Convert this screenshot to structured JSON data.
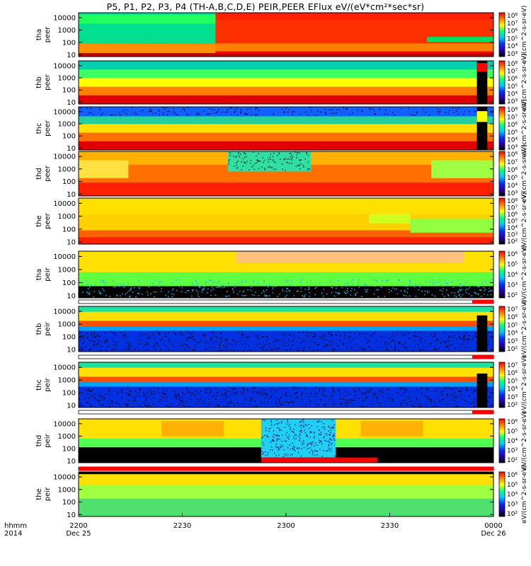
{
  "chart_data": {
    "type": "heatmap",
    "title": "P5, P1, P2, P3, P4 (TH-A,B,C,D,E) PEIR,PEER EFlux eV/(eV*cm²*sec*sr)",
    "x_axis": {
      "row_label": "hhmm",
      "year_label": "2014",
      "ticks": [
        {
          "label": "2200",
          "date": "Dec 25",
          "minutes": 0
        },
        {
          "label": "2230",
          "date": "",
          "minutes": 30
        },
        {
          "label": "2300",
          "date": "",
          "minutes": 60
        },
        {
          "label": "2330",
          "date": "",
          "minutes": 90
        },
        {
          "label": "0000",
          "date": "Dec 26",
          "minutes": 120
        }
      ],
      "range_minutes": [
        0,
        120
      ]
    },
    "y_scale": "log",
    "y_ticks": [
      "10000",
      "1000",
      "100",
      "10"
    ],
    "y_tick_values": [
      10000,
      1000,
      100,
      10
    ],
    "ylim": [
      7,
      25000
    ],
    "colorbar_units": "eV/(cm^2-s-sr-eV)",
    "panels": [
      {
        "line1": "tha",
        "line2": "peer",
        "cb_ticks": [
          "10⁸",
          "10⁷",
          "10⁶",
          "10⁵",
          "10⁴",
          "10³"
        ],
        "pattern": "tha-peer"
      },
      {
        "line1": "thb",
        "line2": "peer",
        "cb_ticks": [
          "10⁸",
          "10⁷",
          "10⁶",
          "10⁵",
          "10⁴",
          "10³"
        ],
        "pattern": "thb-peer"
      },
      {
        "line1": "thc",
        "line2": "peer",
        "cb_ticks": [
          "10⁸",
          "10⁷",
          "10⁶",
          "10⁵",
          "10⁴",
          "10³"
        ],
        "pattern": "thc-peer"
      },
      {
        "line1": "thd",
        "line2": "peer",
        "cb_ticks": [
          "10⁸",
          "10⁷",
          "10⁶",
          "10⁵",
          "10⁴",
          "10³"
        ],
        "pattern": "thd-peer"
      },
      {
        "line1": "the",
        "line2": "peer",
        "cb_ticks": [
          "10⁸",
          "10⁷",
          "10⁶",
          "10⁵",
          "10⁴",
          "10³",
          "10²"
        ],
        "pattern": "the-peer"
      },
      {
        "line1": "tha",
        "line2": "peir",
        "cb_ticks": [
          "10⁶",
          "10⁵",
          "10⁴",
          "10³",
          "10²"
        ],
        "pattern": "tha-peir"
      },
      {
        "line1": "thb",
        "line2": "peir",
        "cb_ticks": [
          "10⁷",
          "10⁶",
          "10⁵",
          "10⁴",
          "10³",
          "10²"
        ],
        "pattern": "thb-peir"
      },
      {
        "line1": "thc",
        "line2": "peir",
        "cb_ticks": [
          "10⁷",
          "10⁶",
          "10⁵",
          "10⁴",
          "10³",
          "10²"
        ],
        "pattern": "thc-peir"
      },
      {
        "line1": "thd",
        "line2": "peir",
        "cb_ticks": [
          "10⁶",
          "10⁵",
          "10⁴",
          "10³",
          "10²"
        ],
        "pattern": "thd-peir"
      },
      {
        "line1": "the",
        "line2": "peir",
        "cb_ticks": [
          "10⁶",
          "10⁵",
          "10⁴",
          "10³",
          "10²"
        ],
        "pattern": "the-peir"
      }
    ],
    "colors": {
      "colormap": [
        "#000000",
        "#2a00b0",
        "#0030ff",
        "#00c8ff",
        "#00ff80",
        "#ffff00",
        "#ff8000",
        "#ff0000"
      ],
      "flag_bar": "#ff0000"
    },
    "grid": false,
    "legend": "none"
  }
}
